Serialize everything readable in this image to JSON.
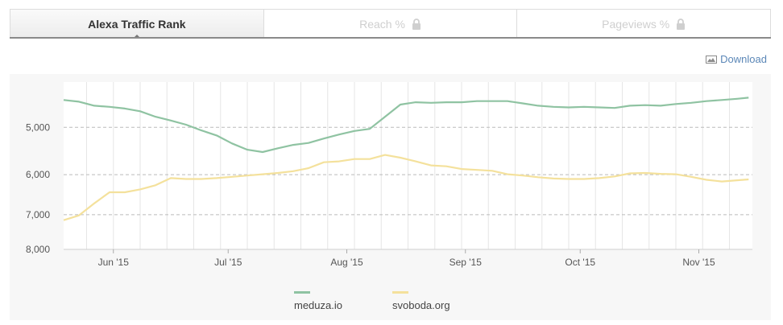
{
  "tabs": [
    {
      "label": "Alexa Traffic Rank",
      "active": true,
      "locked": false
    },
    {
      "label": "Reach %",
      "active": false,
      "locked": true
    },
    {
      "label": "Pageviews %",
      "active": false,
      "locked": true
    }
  ],
  "download_label": "Download",
  "chart_data": {
    "type": "line",
    "xlabel": "",
    "ylabel": "",
    "y_scale": "log",
    "y_inverted": true,
    "ylim": [
      4200,
      8000
    ],
    "xlim": [
      "2015-05-19",
      "2015-11-15"
    ],
    "y_ticks": [
      "5,000",
      "6,000",
      "7,000",
      "8,000"
    ],
    "y_tick_values": [
      5000,
      6000,
      7000,
      8000
    ],
    "x_ticks": [
      "Jun '15",
      "Jul '15",
      "Aug '15",
      "Sep '15",
      "Oct '15",
      "Nov '15"
    ],
    "x_tick_dates": [
      "2015-06-01",
      "2015-07-01",
      "2015-08-01",
      "2015-09-01",
      "2015-10-01",
      "2015-11-01"
    ],
    "grid": true,
    "legend_position": "bottom",
    "series": [
      {
        "name": "meduza.io",
        "color": "#8fc3a2",
        "x": [
          "2015-05-19",
          "2015-05-23",
          "2015-05-27",
          "2015-05-31",
          "2015-06-04",
          "2015-06-08",
          "2015-06-12",
          "2015-06-16",
          "2015-06-20",
          "2015-06-24",
          "2015-06-28",
          "2015-07-02",
          "2015-07-06",
          "2015-07-10",
          "2015-07-14",
          "2015-07-18",
          "2015-07-22",
          "2015-07-26",
          "2015-07-30",
          "2015-08-03",
          "2015-08-07",
          "2015-08-11",
          "2015-08-15",
          "2015-08-19",
          "2015-08-23",
          "2015-08-27",
          "2015-08-31",
          "2015-09-04",
          "2015-09-08",
          "2015-09-12",
          "2015-09-16",
          "2015-09-20",
          "2015-09-24",
          "2015-09-28",
          "2015-10-02",
          "2015-10-06",
          "2015-10-10",
          "2015-10-14",
          "2015-10-18",
          "2015-10-22",
          "2015-10-26",
          "2015-10-30",
          "2015-11-03",
          "2015-11-07",
          "2015-11-11",
          "2015-11-14"
        ],
        "y": [
          4500,
          4530,
          4600,
          4620,
          4650,
          4700,
          4800,
          4870,
          4950,
          5060,
          5160,
          5320,
          5450,
          5500,
          5420,
          5350,
          5310,
          5220,
          5140,
          5070,
          5030,
          4800,
          4580,
          4540,
          4550,
          4540,
          4540,
          4520,
          4520,
          4520,
          4560,
          4600,
          4620,
          4630,
          4620,
          4630,
          4640,
          4600,
          4590,
          4600,
          4570,
          4550,
          4520,
          4500,
          4480,
          4460
        ]
      },
      {
        "name": "svoboda.org",
        "color": "#f4e19c",
        "x": [
          "2015-05-19",
          "2015-05-23",
          "2015-05-27",
          "2015-05-31",
          "2015-06-04",
          "2015-06-08",
          "2015-06-12",
          "2015-06-16",
          "2015-06-20",
          "2015-06-24",
          "2015-06-28",
          "2015-07-02",
          "2015-07-06",
          "2015-07-10",
          "2015-07-14",
          "2015-07-18",
          "2015-07-22",
          "2015-07-26",
          "2015-07-30",
          "2015-08-03",
          "2015-08-07",
          "2015-08-11",
          "2015-08-15",
          "2015-08-19",
          "2015-08-23",
          "2015-08-27",
          "2015-08-31",
          "2015-09-04",
          "2015-09-08",
          "2015-09-12",
          "2015-09-16",
          "2015-09-20",
          "2015-09-24",
          "2015-09-28",
          "2015-10-02",
          "2015-10-06",
          "2015-10-10",
          "2015-10-14",
          "2015-10-18",
          "2015-10-22",
          "2015-10-26",
          "2015-10-30",
          "2015-11-03",
          "2015-11-07",
          "2015-11-11",
          "2015-11-14"
        ],
        "y": [
          7150,
          7020,
          6700,
          6420,
          6420,
          6350,
          6250,
          6080,
          6100,
          6100,
          6080,
          6050,
          6020,
          5990,
          5960,
          5920,
          5850,
          5720,
          5700,
          5650,
          5650,
          5560,
          5620,
          5700,
          5790,
          5810,
          5870,
          5890,
          5910,
          5990,
          6020,
          6060,
          6090,
          6100,
          6100,
          6080,
          6040,
          5970,
          5960,
          5980,
          5990,
          6050,
          6120,
          6160,
          6130,
          6110
        ]
      }
    ]
  }
}
